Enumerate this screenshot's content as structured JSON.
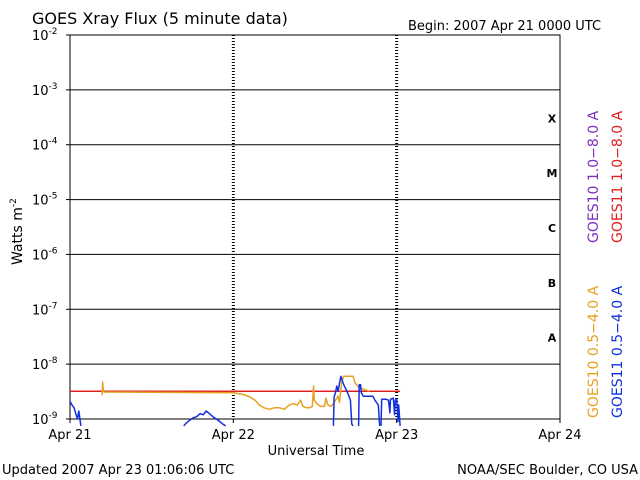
{
  "title": "GOES Xray Flux (5 minute data)",
  "begin": "Begin:  2007 Apr 21 0000 UTC",
  "updated": "Updated 2007 Apr 23 01:06:06 UTC",
  "credit": "NOAA/SEC Boulder, CO USA",
  "colors": {
    "goes10_long": "#7f2fbf",
    "goes11_long": "#e02020",
    "goes10_short": "#e8a020",
    "goes11_short": "#1030e0",
    "frame": "#000000"
  },
  "chart_data": {
    "type": "line",
    "title": "GOES Xray Flux (5 minute data)",
    "xlabel": "Universal Time",
    "ylabel": "Watts m",
    "ylabel_superscript": "-2",
    "xlim": [
      0,
      72
    ],
    "ylim_exponent": [
      -9,
      -2
    ],
    "yscale": "log",
    "x_unit": "hours since 2007 Apr 21 0000 UTC",
    "x_ticks": [
      {
        "x": 0,
        "label": "Apr 21"
      },
      {
        "x": 24,
        "label": "Apr 22"
      },
      {
        "x": 48,
        "label": "Apr 23"
      },
      {
        "x": 72,
        "label": "Apr 24"
      }
    ],
    "y_ticks": [
      {
        "base": "10",
        "exp": "-2"
      },
      {
        "base": "10",
        "exp": "-3"
      },
      {
        "base": "10",
        "exp": "-4"
      },
      {
        "base": "10",
        "exp": "-5"
      },
      {
        "base": "10",
        "exp": "-6"
      },
      {
        "base": "10",
        "exp": "-7"
      },
      {
        "base": "10",
        "exp": "-8"
      },
      {
        "base": "10",
        "exp": "-9"
      }
    ],
    "y_tick_exponents": [
      -2,
      -3,
      -4,
      -5,
      -6,
      -7,
      -8,
      -9
    ],
    "flare_classes": [
      {
        "label": "X",
        "exp": -4
      },
      {
        "label": "M",
        "exp": -5
      },
      {
        "label": "C",
        "exp": -6
      },
      {
        "label": "B",
        "exp": -7
      },
      {
        "label": "A",
        "exp": -8
      }
    ],
    "grid": true,
    "series": [
      {
        "name": "GOES10 1.0−8.0 A",
        "color": "#7f2fbf",
        "points": []
      },
      {
        "name": "GOES11 1.0−8.0 A",
        "color": "#e02020",
        "points": [
          [
            0,
            3.2e-09
          ],
          [
            48.5,
            3.2e-09
          ]
        ]
      },
      {
        "name": "GOES10 0.5−4.0 A",
        "color": "#e8a020",
        "points": [
          [
            4.7,
            2.7e-09
          ],
          [
            4.8,
            4.7e-09
          ],
          [
            4.9,
            3.3e-09
          ],
          [
            5.0,
            3.1e-09
          ],
          [
            24.0,
            3e-09
          ],
          [
            25.5,
            2.8e-09
          ],
          [
            26.5,
            2.5e-09
          ],
          [
            27.2,
            2.2e-09
          ],
          [
            27.8,
            1.8e-09
          ],
          [
            28.5,
            1.6e-09
          ],
          [
            29.3,
            1.5e-09
          ],
          [
            30.0,
            1.6e-09
          ],
          [
            30.8,
            1.6e-09
          ],
          [
            31.5,
            1.5e-09
          ],
          [
            32.2,
            1.8e-09
          ],
          [
            32.8,
            1.9e-09
          ],
          [
            33.4,
            1.8e-09
          ],
          [
            33.9,
            2.2e-09
          ],
          [
            34.2,
            1.7e-09
          ],
          [
            34.8,
            1.6e-09
          ],
          [
            35.2,
            1.6e-09
          ],
          [
            35.6,
            1.7e-09
          ],
          [
            35.8,
            4e-09
          ],
          [
            35.9,
            2.2e-09
          ],
          [
            36.3,
            1.9e-09
          ],
          [
            36.8,
            1.7e-09
          ],
          [
            37.4,
            1.7e-09
          ],
          [
            37.6,
            2.4e-09
          ],
          [
            37.9,
            1.8e-09
          ],
          [
            38.4,
            1.7e-09
          ],
          [
            38.8,
            2e-09
          ],
          [
            39.4,
            2.6e-09
          ],
          [
            39.6,
            2e-09
          ],
          [
            39.9,
            4.5e-09
          ],
          [
            40.2,
            6e-09
          ],
          [
            41.6,
            6e-09
          ],
          [
            41.9,
            4.5e-09
          ],
          [
            42.4,
            3.8e-09
          ],
          [
            42.8,
            3.6e-09
          ],
          [
            43.4,
            3.4e-09
          ],
          [
            44.0,
            3.2e-09
          ]
        ]
      },
      {
        "name": "GOES11 0.5−4.0 A",
        "color": "#1030e0",
        "segments": [
          [
            [
              0,
              2.1e-09
            ],
            [
              0.3,
              1.8e-09
            ],
            [
              0.6,
              1.6e-09
            ],
            [
              0.9,
              1.2e-09
            ],
            [
              1.1,
              1e-09
            ],
            [
              1.3,
              1.4e-09
            ],
            [
              1.6,
              7.5e-10
            ]
          ],
          [
            [
              16.7,
              7.5e-10
            ],
            [
              17.1,
              8.5e-10
            ],
            [
              17.6,
              9.5e-10
            ],
            [
              18.1,
              1.05e-09
            ],
            [
              18.6,
              1.1e-09
            ],
            [
              19.1,
              1.25e-09
            ],
            [
              19.6,
              1.2e-09
            ],
            [
              20.0,
              1.4e-09
            ],
            [
              20.5,
              1.25e-09
            ],
            [
              21.0,
              1.1e-09
            ],
            [
              21.5,
              1e-09
            ],
            [
              22.0,
              9e-10
            ],
            [
              22.5,
              8e-10
            ],
            [
              22.9,
              7.5e-10
            ]
          ],
          [
            [
              38.7,
              7.5e-10
            ],
            [
              38.8,
              2.5e-09
            ],
            [
              39.0,
              3e-09
            ],
            [
              39.2,
              4e-09
            ],
            [
              39.4,
              3.2e-09
            ],
            [
              39.6,
              4.5e-09
            ],
            [
              39.8,
              6e-09
            ],
            [
              40.0,
              5e-09
            ],
            [
              40.3,
              4e-09
            ],
            [
              40.6,
              3.4e-09
            ],
            [
              40.9,
              2.8e-09
            ],
            [
              41.2,
              2.2e-09
            ],
            [
              41.4,
              8e-10
            ],
            [
              41.6,
              7.5e-10
            ]
          ],
          [
            [
              42.4,
              7.5e-10
            ],
            [
              42.5,
              4.2e-09
            ],
            [
              42.7,
              4.2e-09
            ],
            [
              42.8,
              3e-09
            ],
            [
              43.1,
              2.6e-09
            ],
            [
              44.5,
              2.6e-09
            ],
            [
              44.8,
              2.2e-09
            ],
            [
              45.3,
              1.8e-09
            ],
            [
              45.5,
              7.5e-10
            ]
          ],
          [
            [
              45.7,
              7.5e-10
            ],
            [
              45.8,
              2.3e-09
            ],
            [
              46.4,
              2.3e-09
            ],
            [
              46.8,
              2.2e-09
            ],
            [
              47.0,
              1.3e-09
            ],
            [
              47.1,
              2.3e-09
            ],
            [
              47.5,
              2.4e-09
            ],
            [
              47.7,
              1.2e-09
            ],
            [
              47.8,
              2.2e-09
            ],
            [
              48.0,
              2.3e-09
            ],
            [
              48.2,
              9e-10
            ],
            [
              48.3,
              1.8e-09
            ],
            [
              48.5,
              7.5e-10
            ]
          ]
        ]
      }
    ]
  }
}
